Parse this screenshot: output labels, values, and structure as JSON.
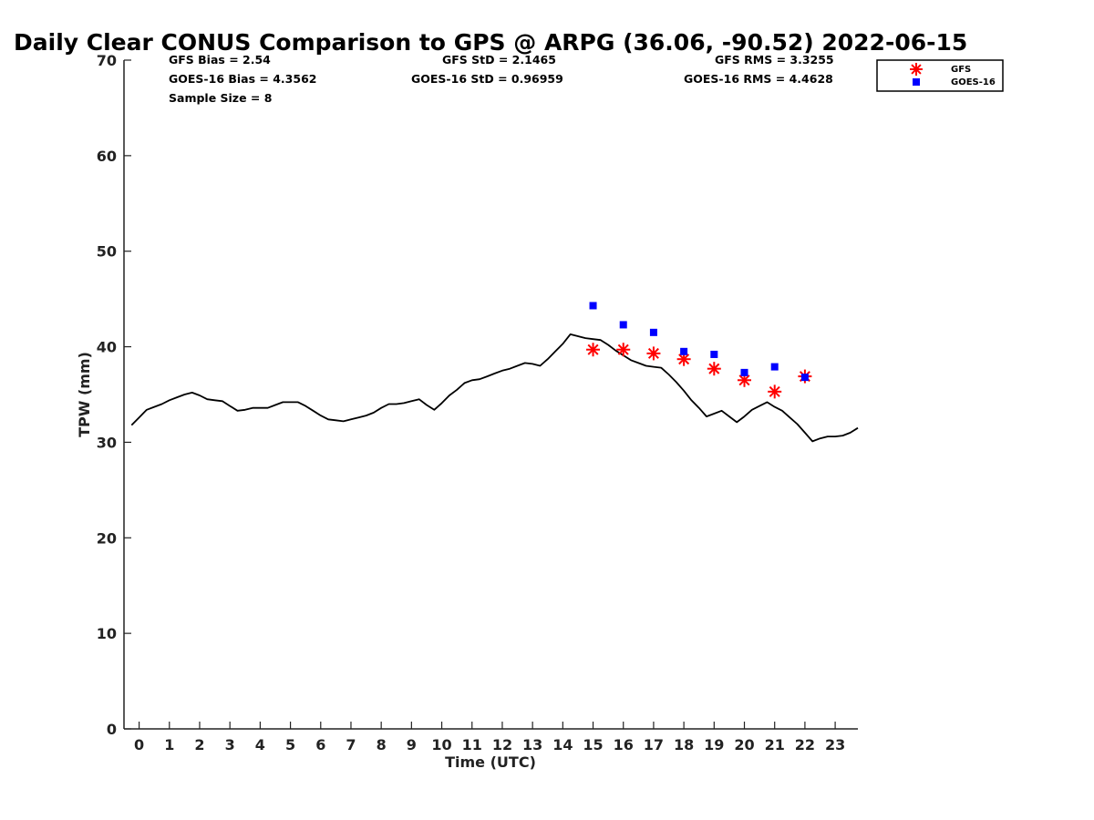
{
  "chart_data": {
    "type": "line",
    "title": "Daily Clear CONUS Comparison to GPS @ ARPG (36.06, -90.52) 2022-06-15",
    "xlabel": "Time (UTC)",
    "ylabel": "TPW (mm)",
    "xlim": [
      -0.5,
      23.75
    ],
    "ylim": [
      0,
      70
    ],
    "x_ticks": [
      "0",
      "1",
      "2",
      "3",
      "4",
      "5",
      "6",
      "7",
      "8",
      "9",
      "10",
      "11",
      "12",
      "13",
      "14",
      "15",
      "16",
      "17",
      "18",
      "19",
      "20",
      "21",
      "22",
      "23"
    ],
    "y_ticks": [
      "0",
      "10",
      "20",
      "30",
      "40",
      "50",
      "60",
      "70"
    ],
    "grid": false,
    "legend_position": "top-right",
    "stats": {
      "gfs_bias": "GFS Bias = 2.54",
      "goes_bias": "GOES-16 Bias = 4.3562",
      "sample_size": "Sample Size = 8",
      "gfs_std": "GFS StD = 2.1465",
      "goes_std": "GOES-16 StD = 0.96959",
      "gfs_rms": "GFS RMS = 3.3255",
      "goes_rms": "GOES-16 RMS = 4.4628"
    },
    "legend": [
      {
        "label": "GFS",
        "color": "#ff0000",
        "marker": "asterisk"
      },
      {
        "label": "GOES-16",
        "color": "#0000ff",
        "marker": "square"
      }
    ],
    "series": [
      {
        "color": "#000000",
        "style": "line",
        "x": [
          -0.25,
          0,
          0.25,
          0.5,
          0.75,
          1,
          1.25,
          1.5,
          1.75,
          2,
          2.25,
          2.5,
          2.75,
          3,
          3.25,
          3.5,
          3.75,
          4,
          4.25,
          4.5,
          4.75,
          5,
          5.25,
          5.5,
          5.75,
          6,
          6.25,
          6.5,
          6.75,
          7,
          7.25,
          7.5,
          7.75,
          8,
          8.25,
          8.5,
          8.75,
          9,
          9.25,
          9.5,
          9.75,
          10,
          10.25,
          10.5,
          10.75,
          11,
          11.25,
          11.5,
          11.75,
          12,
          12.25,
          12.5,
          12.75,
          13,
          13.25,
          13.5,
          13.75,
          14,
          14.25,
          14.5,
          14.75,
          15,
          15.25,
          15.5,
          15.75,
          16,
          16.25,
          16.5,
          16.75,
          17,
          17.25,
          17.5,
          17.75,
          18,
          18.25,
          18.5,
          18.75,
          19,
          19.25,
          19.5,
          19.75,
          20,
          20.25,
          20.5,
          20.75,
          21,
          21.25,
          21.5,
          21.75,
          22,
          22.25,
          22.5,
          22.75,
          23,
          23.25,
          23.5,
          23.75
        ],
        "y": [
          31.8,
          32.6,
          33.4,
          33.7,
          34.0,
          34.4,
          34.7,
          35.0,
          35.2,
          34.9,
          34.5,
          34.4,
          34.3,
          33.8,
          33.3,
          33.4,
          33.6,
          33.6,
          33.6,
          33.9,
          34.2,
          34.2,
          34.2,
          33.8,
          33.3,
          32.8,
          32.4,
          32.3,
          32.2,
          32.4,
          32.6,
          32.8,
          33.1,
          33.6,
          34.0,
          34.0,
          34.1,
          34.3,
          34.5,
          33.9,
          33.4,
          34.1,
          34.9,
          35.5,
          36.2,
          36.5,
          36.6,
          36.9,
          37.2,
          37.5,
          37.7,
          38.0,
          38.3,
          38.2,
          38.0,
          38.7,
          39.5,
          40.3,
          41.3,
          41.1,
          40.9,
          40.8,
          40.7,
          40.2,
          39.6,
          39.1,
          38.6,
          38.3,
          38.0,
          37.9,
          37.8,
          37.1,
          36.3,
          35.4,
          34.4,
          33.6,
          32.7,
          33.0,
          33.3,
          32.7,
          32.1,
          32.7,
          33.4,
          33.8,
          34.2,
          33.7,
          33.3,
          32.6,
          31.9,
          31.0,
          30.1,
          30.4,
          30.6,
          30.6,
          30.7,
          31.0,
          31.5
        ]
      },
      {
        "name": "GFS",
        "color": "#ff0000",
        "style": "asterisk",
        "x": [
          15,
          16,
          17,
          18,
          19,
          20,
          21,
          22
        ],
        "y": [
          39.7,
          39.7,
          39.3,
          38.7,
          37.7,
          36.5,
          35.3,
          36.9
        ]
      },
      {
        "name": "GOES-16",
        "color": "#0000ff",
        "style": "square",
        "x": [
          15,
          16,
          17,
          18,
          19,
          20,
          21,
          22
        ],
        "y": [
          44.3,
          42.3,
          41.5,
          39.5,
          39.2,
          37.3,
          37.9,
          36.8
        ]
      }
    ]
  }
}
